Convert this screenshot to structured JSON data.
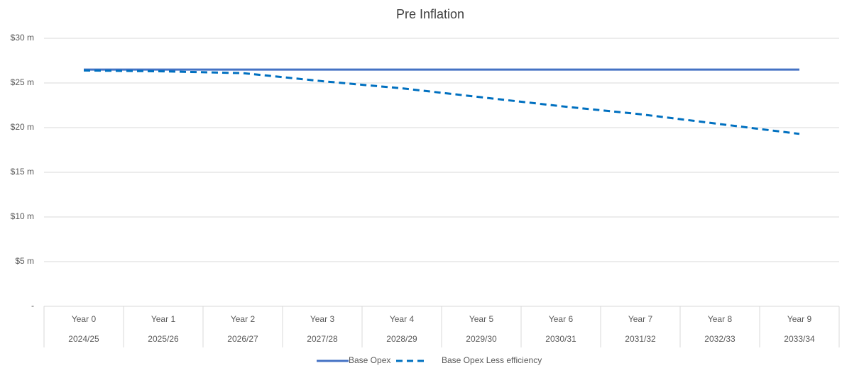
{
  "chart_data": {
    "type": "line",
    "title": "Pre Inflation",
    "categories": [
      "Year 0",
      "Year 1",
      "Year 2",
      "Year 3",
      "Year 4",
      "Year 5",
      "Year 6",
      "Year 7",
      "Year 8",
      "Year 9"
    ],
    "categories2": [
      "2024/25",
      "2025/26",
      "2026/27",
      "2027/28",
      "2028/29",
      "2029/30",
      "2030/31",
      "2031/32",
      "2032/33",
      "2033/34"
    ],
    "series": [
      {
        "name": "Base Opex",
        "color": "#4472c4",
        "dashed": false,
        "values": [
          26.5,
          26.5,
          26.5,
          26.5,
          26.5,
          26.5,
          26.5,
          26.5,
          26.5,
          26.5
        ]
      },
      {
        "name": "Base Opex Less efficiency",
        "color": "#0070c0",
        "dashed": true,
        "values": [
          26.4,
          26.3,
          26.1,
          25.2,
          24.4,
          23.4,
          22.4,
          21.5,
          20.4,
          19.3
        ]
      }
    ],
    "ylim": [
      0,
      30
    ],
    "yticks": [
      {
        "value": 0,
        "label": "-"
      },
      {
        "value": 5,
        "label": "$5 m"
      },
      {
        "value": 10,
        "label": "$10 m"
      },
      {
        "value": 15,
        "label": "$15 m"
      },
      {
        "value": 20,
        "label": "$20 m"
      },
      {
        "value": 25,
        "label": "$25 m"
      },
      {
        "value": 30,
        "label": "$30 m"
      }
    ],
    "grid": true,
    "legend": "bottom"
  }
}
